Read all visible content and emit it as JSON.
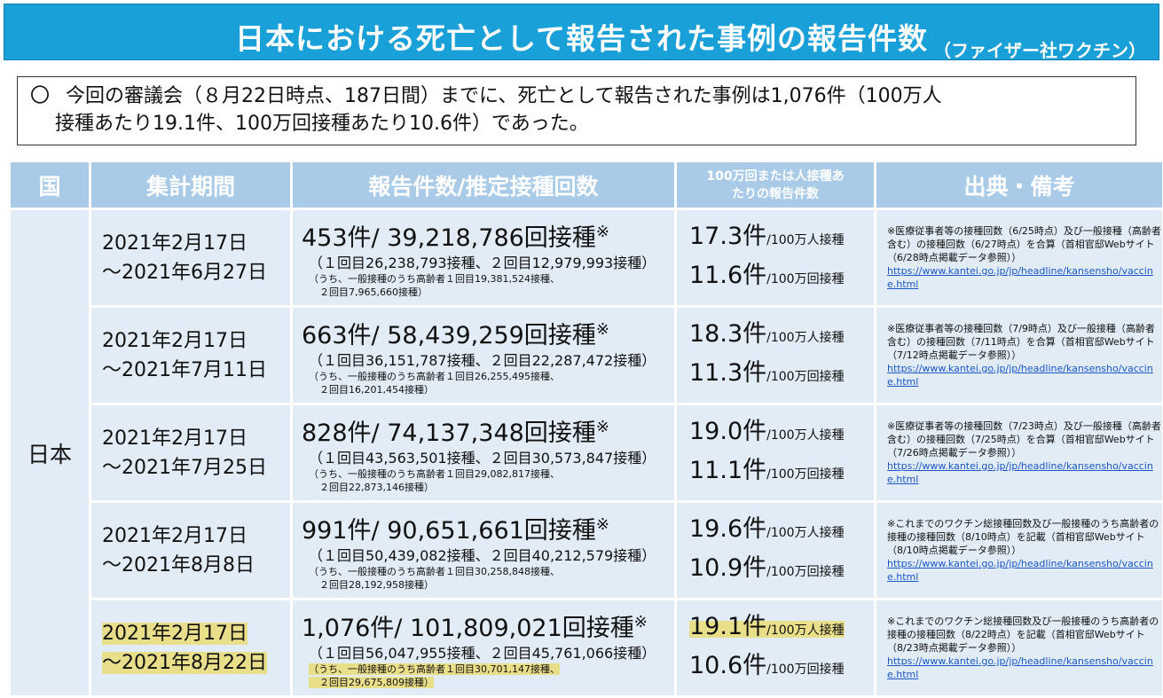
{
  "header": {
    "title": "日本における死亡として報告された事例の報告件数",
    "subtitle": "（ファイザー社ワクチン）"
  },
  "summary": {
    "mark": "〇",
    "line1": "今回の審議会（８月22日時点、187日間）までに、死亡として報告された事例は1,076件（100万人",
    "line2": "接種あたり19.1件、100万回接種あたり10.6件）であった。"
  },
  "table": {
    "headers": {
      "country": "国",
      "period": "集計期間",
      "counts": "報告件数/推定接種回数",
      "rate_line1": "100万回または人接種あ",
      "rate_line2": "たりの報告件数",
      "source": "出典・備考"
    },
    "country": "日本",
    "rows": [
      {
        "period_start": "2021年2月17日",
        "period_end": "～2021年6月27日",
        "count_main": "453件/ 39,218,786回接種",
        "count_mark": "※",
        "count_doses": "（１回目26,238,793接種、２回目12,979,993接種）",
        "count_elderly1": "（うち、一般接種のうち高齢者１回目19,381,524接種、",
        "count_elderly2": "２回目7,965,660接種）",
        "rate_person_value": "17.3件",
        "rate_person_unit": "/100万人接種",
        "rate_dose_value": "11.6件",
        "rate_dose_unit": "/100万回接種",
        "note_text": "※医療従事者等の接種回数（6/25時点）及び一般接種（高齢者含む）の接種回数（6/27時点）を合算（首相官邸Webサイト（6/28時点掲載データ参照））",
        "note_link": "https://www.kantei.go.jp/jp/headline/kansensho/vaccine.html",
        "highlight": false
      },
      {
        "period_start": "2021年2月17日",
        "period_end": "～2021年7月11日",
        "count_main": "663件/ 58,439,259回接種",
        "count_mark": "※",
        "count_doses": "（１回目36,151,787接種、２回目22,287,472接種）",
        "count_elderly1": "（うち、一般接種のうち高齢者１回目26,255,495接種、",
        "count_elderly2": "２回目16,201,454接種）",
        "rate_person_value": "18.3件",
        "rate_person_unit": "/100万人接種",
        "rate_dose_value": "11.3件",
        "rate_dose_unit": "/100万回接種",
        "note_text": "※医療従事者等の接種回数（7/9時点）及び一般接種（高齢者含む）の接種回数（7/11時点）を合算（首相官邸Webサイト（7/12時点掲載データ参照））",
        "note_link": "https://www.kantei.go.jp/jp/headline/kansensho/vaccine.html",
        "highlight": false
      },
      {
        "period_start": "2021年2月17日",
        "period_end": "～2021年7月25日",
        "count_main": "828件/ 74,137,348回接種",
        "count_mark": "※",
        "count_doses": "（１回目43,563,501接種、２回目30,573,847接種）",
        "count_elderly1": "（うち、一般接種のうち高齢者１回目29,082,817接種、",
        "count_elderly2": "２回目22,873,146接種）",
        "rate_person_value": "19.0件",
        "rate_person_unit": "/100万人接種",
        "rate_dose_value": "11.1件",
        "rate_dose_unit": "/100万回接種",
        "note_text": "※医療従事者等の接種回数（7/23時点）及び一般接種（高齢者含む）の接種回数（7/25時点）を合算（首相官邸Webサイト（7/26時点掲載データ参照））",
        "note_link": "https://www.kantei.go.jp/jp/headline/kansensho/vaccine.html",
        "highlight": false
      },
      {
        "period_start": "2021年2月17日",
        "period_end": "～2021年8月8日",
        "count_main": "991件/ 90,651,661回接種",
        "count_mark": "※",
        "count_doses": "（１回目50,439,082接種、２回目40,212,579接種）",
        "count_elderly1": "（うち、一般接種のうち高齢者１回目30,258,848接種、",
        "count_elderly2": "２回目28,192,958接種）",
        "rate_person_value": "19.6件",
        "rate_person_unit": "/100万人接種",
        "rate_dose_value": "10.9件",
        "rate_dose_unit": "/100万回接種",
        "note_text": "※これまでのワクチン総接種回数及び一般接種のうち高齢者の接種の接種回数（8/10時点）を記載（首相官邸Webサイト（8/10時点掲載データ参照））",
        "note_link": "https://www.kantei.go.jp/jp/headline/kansensho/vaccine.html",
        "highlight": false
      },
      {
        "period_start": "2021年2月17日",
        "period_end": "～2021年8月22日",
        "count_main": "1,076件/ 101,809,021回接種",
        "count_mark": "※",
        "count_doses": "（１回目56,047,955接種、２回目45,761,066接種）",
        "count_elderly1": "（うち、一般接種のうち高齢者１回目30,701,147接種、",
        "count_elderly2": "２回目29,675,809接種）",
        "rate_person_value": "19.1件",
        "rate_person_unit": "/100万人接種",
        "rate_dose_value": "10.6件",
        "rate_dose_unit": "/100万回接種",
        "note_text": "※これまでのワクチン総接種回数及び一般接種のうち高齢者の接種の接種回数（8/22時点）を記載（首相官邸Webサイト（8/23時点掲載データ参照））",
        "note_link": "https://www.kantei.go.jp/jp/headline/kansensho/vaccine.html",
        "highlight": true
      }
    ]
  }
}
